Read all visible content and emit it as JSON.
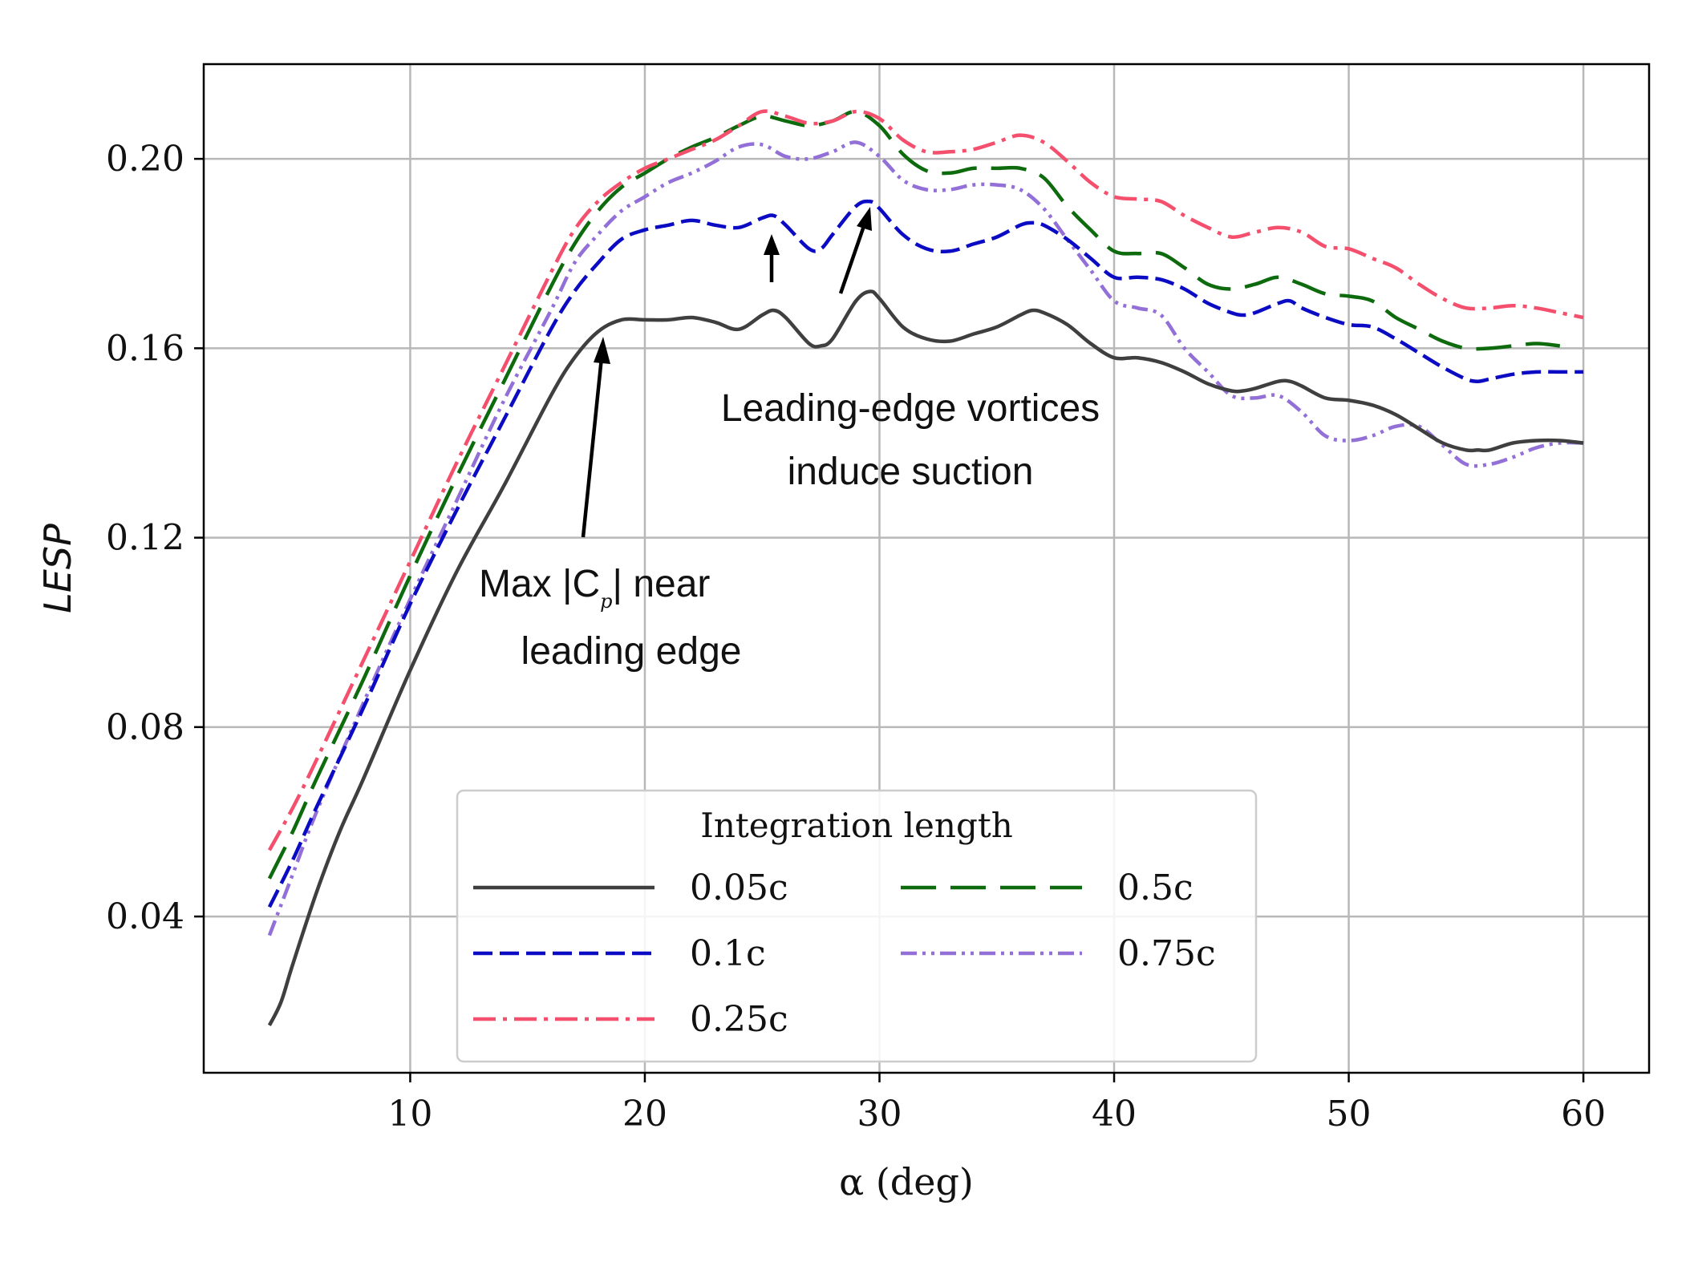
{
  "chart_data": {
    "type": "line",
    "title": "",
    "xlabel": "α (deg)",
    "ylabel": "LESP",
    "xlim": [
      1.2,
      62.8
    ],
    "ylim": [
      0.007,
      0.22
    ],
    "xticks": [
      10,
      20,
      30,
      40,
      50,
      60
    ],
    "xtick_labels": [
      "10",
      "20",
      "30",
      "40",
      "50",
      "60"
    ],
    "yticks": [
      0.04,
      0.08,
      0.12,
      0.16,
      0.2
    ],
    "ytick_labels": [
      "0.04",
      "0.08",
      "0.12",
      "0.16",
      "0.20"
    ],
    "grid": true,
    "legend": {
      "title": "Integration length",
      "location": "lower center",
      "columns": 2
    },
    "series": [
      {
        "name": "0.05c",
        "color": "#3f3f3f",
        "dash": "solid",
        "x": [
          4,
          4.5,
          5,
          6,
          7,
          8,
          10,
          12,
          14,
          16,
          17,
          18,
          19,
          20,
          21,
          22,
          23,
          24,
          25,
          25.5,
          26,
          27,
          27.5,
          28,
          29,
          29.6,
          30,
          31,
          32,
          33,
          34,
          35,
          36,
          36.5,
          37,
          38,
          39,
          40,
          41,
          42,
          43,
          44,
          45,
          45.5,
          46,
          47,
          47.5,
          48,
          49,
          50,
          51,
          52,
          53,
          54,
          55,
          55.5,
          56,
          57,
          58,
          59,
          60
        ],
        "y": [
          0.017,
          0.022,
          0.03,
          0.045,
          0.058,
          0.069,
          0.092,
          0.113,
          0.131,
          0.15,
          0.158,
          0.1635,
          0.166,
          0.166,
          0.166,
          0.1665,
          0.1655,
          0.164,
          0.167,
          0.168,
          0.1665,
          0.161,
          0.1605,
          0.162,
          0.17,
          0.172,
          0.1705,
          0.1645,
          0.162,
          0.1615,
          0.163,
          0.1645,
          0.167,
          0.168,
          0.1675,
          0.165,
          0.161,
          0.158,
          0.158,
          0.157,
          0.155,
          0.1525,
          0.151,
          0.151,
          0.1515,
          0.153,
          0.153,
          0.152,
          0.1495,
          0.149,
          0.148,
          0.146,
          0.143,
          0.14,
          0.1385,
          0.1385,
          0.1385,
          0.14,
          0.1405,
          0.1405,
          0.14
        ]
      },
      {
        "name": "0.1c",
        "color": "#0b0bc4",
        "dash": "dashed",
        "x": [
          4,
          5,
          6,
          8,
          10,
          12,
          14,
          16,
          17,
          18,
          19,
          20,
          21,
          22,
          23,
          24,
          25,
          25.5,
          26,
          27,
          27.5,
          28,
          29,
          29.6,
          30,
          31,
          32,
          33,
          34,
          35,
          36,
          36.5,
          37,
          38,
          39,
          40,
          41,
          42,
          43,
          44,
          45,
          45.5,
          46,
          47,
          47.5,
          48,
          49,
          50,
          51,
          52,
          53,
          54,
          55,
          55.5,
          56,
          57,
          58,
          59,
          60
        ],
        "y": [
          0.042,
          0.052,
          0.063,
          0.084,
          0.106,
          0.126,
          0.145,
          0.164,
          0.172,
          0.178,
          0.183,
          0.185,
          0.186,
          0.187,
          0.186,
          0.1855,
          0.1875,
          0.188,
          0.186,
          0.181,
          0.181,
          0.184,
          0.19,
          0.191,
          0.1895,
          0.184,
          0.181,
          0.1805,
          0.182,
          0.1835,
          0.186,
          0.1865,
          0.186,
          0.183,
          0.179,
          0.175,
          0.175,
          0.1745,
          0.1725,
          0.1695,
          0.1675,
          0.167,
          0.1675,
          0.1695,
          0.17,
          0.1685,
          0.1665,
          0.165,
          0.1645,
          0.162,
          0.159,
          0.156,
          0.1535,
          0.153,
          0.1535,
          0.1545,
          0.155,
          0.155,
          0.155
        ]
      },
      {
        "name": "0.25c",
        "color": "#f4506e",
        "dash": "dashdot",
        "x": [
          4,
          5,
          6,
          8,
          10,
          12,
          14,
          16,
          17,
          18,
          19,
          20,
          21,
          22,
          23,
          24,
          25,
          26,
          27,
          28,
          29,
          30,
          31,
          32,
          33,
          34,
          35,
          36,
          37,
          38,
          39,
          40,
          41,
          42,
          43,
          44,
          45,
          46,
          47,
          48,
          49,
          50,
          51,
          52,
          53,
          54,
          55,
          56,
          57,
          58,
          59,
          60
        ],
        "y": [
          0.054,
          0.063,
          0.073,
          0.094,
          0.115,
          0.136,
          0.156,
          0.176,
          0.185,
          0.191,
          0.195,
          0.198,
          0.2,
          0.202,
          0.204,
          0.207,
          0.21,
          0.209,
          0.2075,
          0.208,
          0.21,
          0.2085,
          0.204,
          0.2015,
          0.2015,
          0.202,
          0.2035,
          0.205,
          0.2035,
          0.1995,
          0.195,
          0.192,
          0.1915,
          0.191,
          0.188,
          0.1855,
          0.1835,
          0.1845,
          0.1855,
          0.1845,
          0.1815,
          0.181,
          0.179,
          0.177,
          0.1735,
          0.1705,
          0.1685,
          0.1685,
          0.169,
          0.1685,
          0.1675,
          0.1665
        ]
      },
      {
        "name": "0.5c",
        "color": "#0d6a0d",
        "dash": "longdash",
        "x": [
          4,
          5,
          6,
          8,
          10,
          12,
          14,
          16,
          17,
          18,
          19,
          20,
          21,
          22,
          23,
          24,
          25,
          26,
          27,
          28,
          29,
          30,
          31,
          32,
          33,
          34,
          35,
          36,
          37,
          38,
          39,
          40,
          41,
          42,
          43,
          44,
          45,
          46,
          47,
          48,
          49,
          50,
          51,
          52,
          53,
          54,
          55,
          56,
          57,
          58,
          59
        ],
        "y": [
          0.048,
          0.058,
          0.069,
          0.09,
          0.112,
          0.133,
          0.153,
          0.173,
          0.182,
          0.189,
          0.194,
          0.197,
          0.2,
          0.2025,
          0.2045,
          0.207,
          0.209,
          0.208,
          0.207,
          0.208,
          0.21,
          0.207,
          0.201,
          0.1975,
          0.197,
          0.198,
          0.198,
          0.198,
          0.196,
          0.19,
          0.185,
          0.1805,
          0.18,
          0.18,
          0.177,
          0.1735,
          0.1725,
          0.1735,
          0.175,
          0.1735,
          0.1715,
          0.171,
          0.17,
          0.1665,
          0.164,
          0.1615,
          0.16,
          0.16,
          0.1605,
          0.161,
          0.1605
        ]
      },
      {
        "name": "0.75c",
        "color": "#9270d8",
        "dash": "dashdotdot",
        "x": [
          4,
          5,
          6,
          8,
          10,
          12,
          14,
          16,
          17,
          18,
          19,
          20,
          21,
          22,
          23,
          24,
          25,
          26,
          27,
          28,
          29,
          30,
          31,
          32,
          33,
          34,
          35,
          36,
          37,
          38,
          39,
          40,
          41,
          42,
          43,
          44,
          45,
          46,
          47,
          48,
          49,
          50,
          51,
          52,
          53,
          54,
          55,
          56,
          57,
          58,
          59,
          60
        ],
        "y": [
          0.036,
          0.049,
          0.062,
          0.085,
          0.107,
          0.128,
          0.149,
          0.168,
          0.178,
          0.184,
          0.189,
          0.192,
          0.195,
          0.197,
          0.1995,
          0.2025,
          0.203,
          0.2005,
          0.2,
          0.2015,
          0.2035,
          0.2005,
          0.1955,
          0.1935,
          0.1935,
          0.1945,
          0.1945,
          0.1935,
          0.1895,
          0.183,
          0.1765,
          0.17,
          0.1685,
          0.167,
          0.16,
          0.155,
          0.15,
          0.1495,
          0.15,
          0.1465,
          0.1415,
          0.1405,
          0.1415,
          0.1435,
          0.1435,
          0.1395,
          0.1355,
          0.1355,
          0.137,
          0.139,
          0.14,
          0.14
        ]
      }
    ],
    "annotations": [
      {
        "lines": [
          "Leading-edge vortices",
          "induce suction"
        ]
      },
      {
        "lines": [
          "Max |C",
          "| near",
          "leading edge"
        ],
        "math_symbol": "C",
        "math_subscript": "p"
      }
    ]
  }
}
